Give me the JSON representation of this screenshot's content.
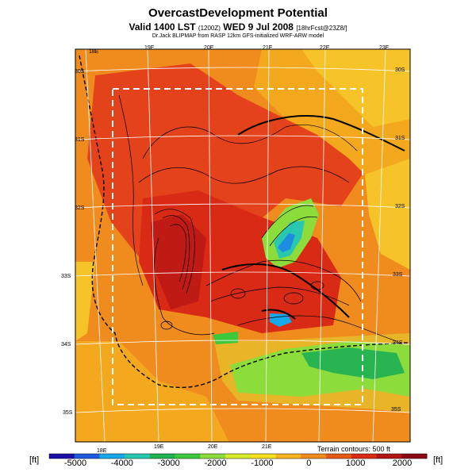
{
  "title": {
    "main": "OvercastDevelopment Potential",
    "valid": "Valid 1400 LST",
    "valid_small_1": "(1200Z)",
    "valid_date": "WED 9 Jul 2008",
    "valid_small_2": "[18hrFcst@23Z8/]",
    "source": "Dr.Jack BLIPMAP from RASP 12km GFS-initialized WRF-ARW model"
  },
  "map": {
    "top_lon_labels": [
      "18E",
      "19E",
      "20E",
      "21E",
      "22E",
      "23E"
    ],
    "bottom_lon_labels": [
      "18E",
      "19E",
      "20E",
      "21E"
    ],
    "left_lat_labels": [
      "30S",
      "31S",
      "32S",
      "33S",
      "34S",
      "35S"
    ],
    "right_lat_labels": [
      "30S",
      "31S",
      "32S",
      "33S",
      "34S",
      "35S"
    ],
    "terrain_note": "Terrain contours: 500 ft"
  },
  "colorbar": {
    "unit_left": "[ft]",
    "unit_right": "[ft]",
    "ticks": [
      "-5000",
      "-4000",
      "-3000",
      "-2000",
      "-1000",
      "0",
      "1000",
      "2000"
    ],
    "colors": [
      "#1a0fa8",
      "#1e5ae0",
      "#16a8e8",
      "#28c8b0",
      "#1eb450",
      "#3cc83c",
      "#8cdc3c",
      "#d8ec2c",
      "#f8e11e",
      "#f8b41e",
      "#f08c1e",
      "#e85a14",
      "#d82a14",
      "#b41414",
      "#8c0a14"
    ]
  }
}
